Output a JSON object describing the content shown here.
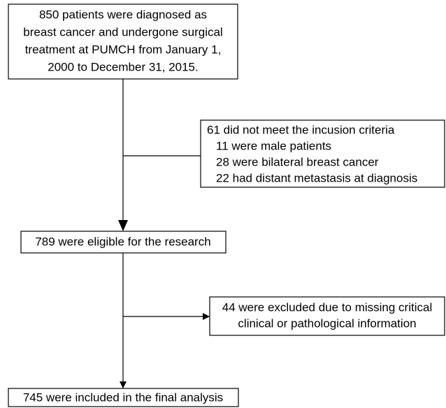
{
  "nodes": [
    {
      "lines": [
        "850 patients were diagnosed as",
        "breast cancer and undergone surgical",
        "treatment at PUMCH from January 1,",
        "2000 to December 31, 2015."
      ]
    },
    {
      "lines": [
        "61 did not meet the incusion criteria",
        "11 were male patients",
        "28 were bilateral breast cancer",
        "22 had distant metastasis at diagnosis"
      ]
    },
    {
      "lines": [
        "789 were eligible for the research"
      ]
    },
    {
      "lines": [
        "44 were excluded due to missing critical",
        "clinical or pathological information"
      ]
    },
    {
      "lines": [
        "745 were included in the final analysis"
      ]
    }
  ]
}
